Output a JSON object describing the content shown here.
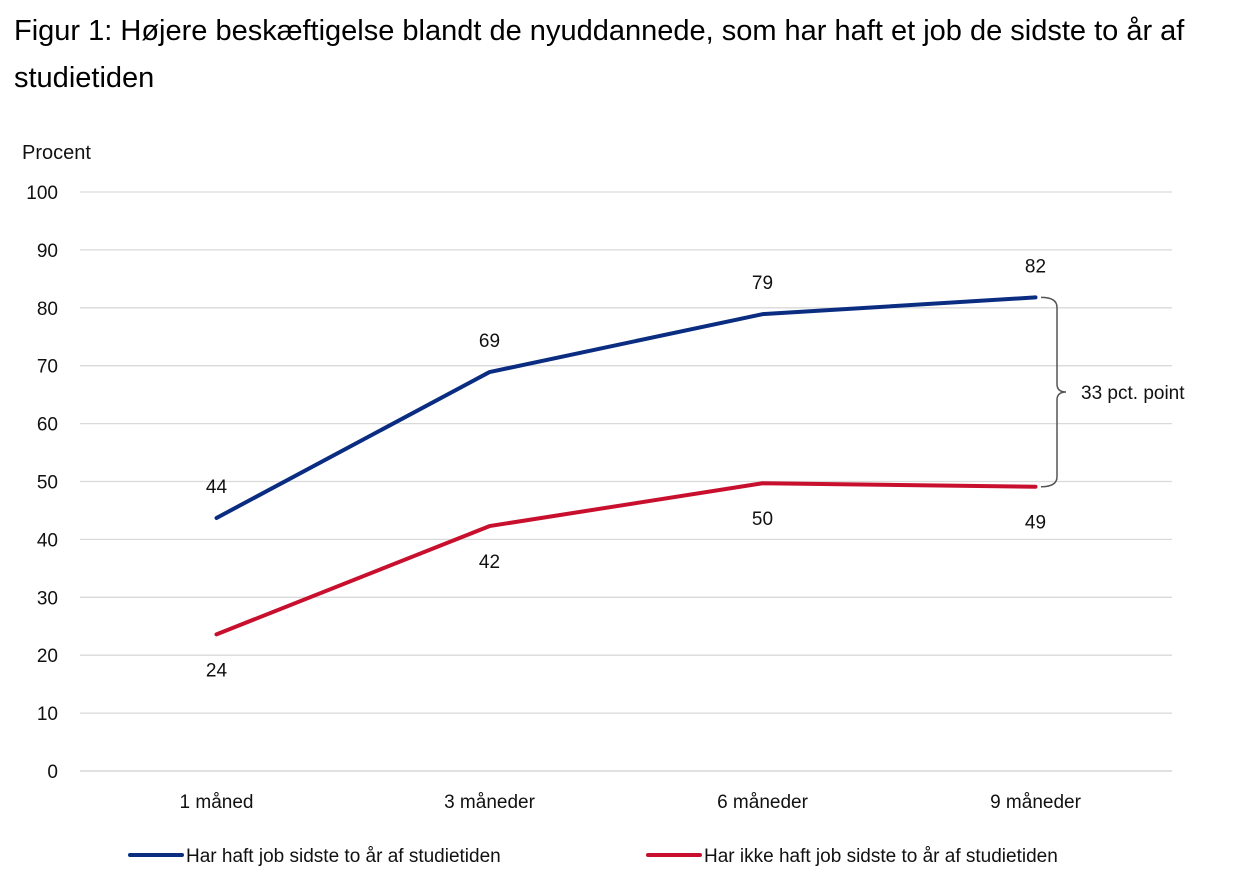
{
  "chart_data": {
    "type": "line",
    "title": "Figur 1: Højere beskæftigelse blandt de nyuddannede, som har haft et job de sidste to år af studietiden",
    "ylabel": "Procent",
    "xlabel": "",
    "ylim": [
      0,
      100
    ],
    "yticks": [
      "0",
      "10",
      "20",
      "30",
      "40",
      "50",
      "60",
      "70",
      "80",
      "90",
      "100"
    ],
    "categories": [
      "1 måned",
      "3 måneder",
      "6 måneder",
      "9 måneder"
    ],
    "series": [
      {
        "name": "Har haft job sidste to år af studietiden",
        "values": [
          43.7,
          68.9,
          78.9,
          81.8
        ],
        "labels": [
          "44",
          "69",
          "79",
          "82"
        ],
        "label_position": "above",
        "color": "#0a2d82"
      },
      {
        "name": "Har ikke haft job sidste to år af studietiden",
        "values": [
          23.6,
          42.3,
          49.7,
          49.1
        ],
        "labels": [
          "24",
          "42",
          "50",
          "49"
        ],
        "label_position": "below",
        "color": "#c8102e"
      }
    ],
    "annotation": {
      "text": "33 pct. point",
      "from_value": 81.8,
      "to_value": 49.1,
      "category": "9 måneder"
    },
    "grid": true,
    "legend_position": "bottom"
  }
}
